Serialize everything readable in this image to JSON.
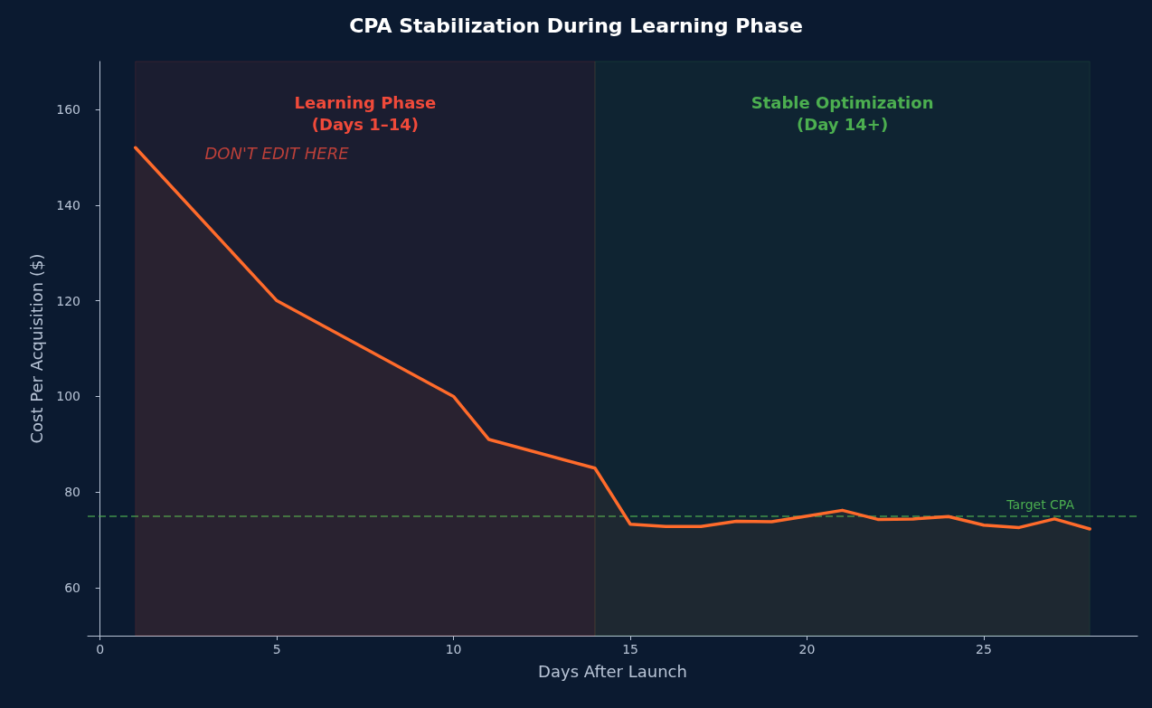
{
  "chart_data": {
    "type": "area",
    "title": "CPA Stabilization During Learning Phase",
    "xlabel": "Days After Launch",
    "ylabel": "Cost Per Acquisition ($)",
    "x": [
      1,
      5,
      10,
      11,
      14,
      15,
      16,
      17,
      18,
      19,
      20,
      21,
      22,
      23,
      24,
      25,
      26,
      27,
      28
    ],
    "series": [
      {
        "color": "#ff6b2b",
        "values": [
          152,
          120,
          100,
          91,
          85,
          73.3,
          72.8,
          72.8,
          73.9,
          73.8,
          75,
          76.2,
          74.3,
          74.4,
          74.9,
          73.1,
          72.6,
          74.4,
          72.3
        ]
      }
    ],
    "xlim": [
      -0.35,
      29.35
    ],
    "xticks": [
      0,
      5,
      10,
      15,
      20,
      25
    ],
    "ylim": [
      50,
      170
    ],
    "yticks": [
      60,
      80,
      100,
      120,
      140,
      160
    ],
    "bands": [
      {
        "axis": "x",
        "from": 1,
        "to": 14,
        "label": "Learning Phase\n(Days 1–14)",
        "color": "#f04a3a"
      },
      {
        "axis": "x",
        "from": 14,
        "to": 28,
        "label": "Stable Optimization\n(Day 14+)",
        "color": "#4caf50"
      }
    ],
    "ref_lines": [
      {
        "axis": "y",
        "value": 75,
        "label": "Target CPA",
        "color": "#4caf50",
        "line_style": "dashed"
      }
    ],
    "annotations": [
      "DON'T EDIT HERE"
    ],
    "grid": false,
    "marker": "none",
    "line_style": "solid"
  }
}
